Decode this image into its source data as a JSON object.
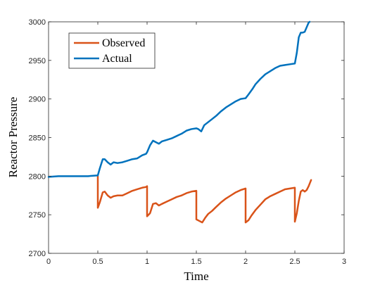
{
  "chart_data": {
    "type": "line",
    "title": "",
    "xlabel": "Time",
    "ylabel": "Reactor Pressure",
    "xlim": [
      0,
      3
    ],
    "ylim": [
      2700,
      3000
    ],
    "xticks": [
      0,
      0.5,
      1,
      1.5,
      2,
      2.5,
      3
    ],
    "xtick_labels": [
      "0",
      "0.5",
      "1",
      "1.5",
      "2",
      "2.5",
      "3"
    ],
    "yticks": [
      2700,
      2750,
      2800,
      2850,
      2900,
      2950,
      3000
    ],
    "ytick_labels": [
      "2700",
      "2750",
      "2800",
      "2850",
      "2900",
      "2950",
      "3000"
    ],
    "grid": false,
    "legend_position": "top-left",
    "series": [
      {
        "name": "Observed",
        "color": "#D95319",
        "points": [
          [
            0.5,
            2800
          ],
          [
            0.5,
            2759
          ],
          [
            0.52,
            2766
          ],
          [
            0.55,
            2779
          ],
          [
            0.57,
            2780
          ],
          [
            0.6,
            2775
          ],
          [
            0.63,
            2772
          ],
          [
            0.66,
            2774
          ],
          [
            0.7,
            2775
          ],
          [
            0.75,
            2775
          ],
          [
            0.8,
            2778
          ],
          [
            0.85,
            2781
          ],
          [
            0.9,
            2783
          ],
          [
            0.95,
            2785
          ],
          [
            0.99,
            2786
          ],
          [
            1.0,
            2787
          ],
          [
            1.0,
            2748
          ],
          [
            1.03,
            2752
          ],
          [
            1.06,
            2764
          ],
          [
            1.09,
            2765
          ],
          [
            1.12,
            2762
          ],
          [
            1.15,
            2764
          ],
          [
            1.2,
            2767
          ],
          [
            1.25,
            2770
          ],
          [
            1.3,
            2773
          ],
          [
            1.35,
            2775
          ],
          [
            1.4,
            2778
          ],
          [
            1.45,
            2780
          ],
          [
            1.5,
            2781
          ],
          [
            1.5,
            2744
          ],
          [
            1.53,
            2742
          ],
          [
            1.56,
            2740
          ],
          [
            1.59,
            2746
          ],
          [
            1.62,
            2751
          ],
          [
            1.66,
            2755
          ],
          [
            1.7,
            2760
          ],
          [
            1.75,
            2766
          ],
          [
            1.8,
            2771
          ],
          [
            1.85,
            2775
          ],
          [
            1.9,
            2779
          ],
          [
            1.95,
            2782
          ],
          [
            2.0,
            2784
          ],
          [
            2.0,
            2740
          ],
          [
            2.03,
            2743
          ],
          [
            2.06,
            2749
          ],
          [
            2.1,
            2756
          ],
          [
            2.15,
            2763
          ],
          [
            2.2,
            2770
          ],
          [
            2.25,
            2774
          ],
          [
            2.3,
            2777
          ],
          [
            2.35,
            2780
          ],
          [
            2.4,
            2783
          ],
          [
            2.45,
            2784
          ],
          [
            2.5,
            2785
          ],
          [
            2.5,
            2741
          ],
          [
            2.52,
            2752
          ],
          [
            2.54,
            2768
          ],
          [
            2.56,
            2780
          ],
          [
            2.58,
            2782
          ],
          [
            2.6,
            2780
          ],
          [
            2.62,
            2782
          ],
          [
            2.64,
            2787
          ],
          [
            2.665,
            2795
          ]
        ]
      },
      {
        "name": "Actual",
        "color": "#0072BD",
        "points": [
          [
            0.0,
            2799
          ],
          [
            0.1,
            2800
          ],
          [
            0.2,
            2800
          ],
          [
            0.3,
            2800
          ],
          [
            0.4,
            2800
          ],
          [
            0.5,
            2801
          ],
          [
            0.52,
            2810
          ],
          [
            0.55,
            2822
          ],
          [
            0.57,
            2822
          ],
          [
            0.6,
            2818
          ],
          [
            0.63,
            2815
          ],
          [
            0.66,
            2818
          ],
          [
            0.7,
            2817
          ],
          [
            0.75,
            2818
          ],
          [
            0.8,
            2820
          ],
          [
            0.85,
            2822
          ],
          [
            0.9,
            2823
          ],
          [
            0.95,
            2827
          ],
          [
            0.99,
            2829
          ],
          [
            1.0,
            2831
          ],
          [
            1.03,
            2840
          ],
          [
            1.06,
            2846
          ],
          [
            1.09,
            2844
          ],
          [
            1.12,
            2842
          ],
          [
            1.15,
            2845
          ],
          [
            1.2,
            2847
          ],
          [
            1.25,
            2849
          ],
          [
            1.3,
            2852
          ],
          [
            1.35,
            2855
          ],
          [
            1.4,
            2859
          ],
          [
            1.45,
            2861
          ],
          [
            1.5,
            2862
          ],
          [
            1.52,
            2861
          ],
          [
            1.55,
            2858
          ],
          [
            1.58,
            2866
          ],
          [
            1.62,
            2870
          ],
          [
            1.66,
            2874
          ],
          [
            1.7,
            2878
          ],
          [
            1.75,
            2884
          ],
          [
            1.8,
            2889
          ],
          [
            1.85,
            2893
          ],
          [
            1.9,
            2897
          ],
          [
            1.95,
            2900
          ],
          [
            2.0,
            2901
          ],
          [
            2.03,
            2906
          ],
          [
            2.07,
            2913
          ],
          [
            2.1,
            2919
          ],
          [
            2.15,
            2926
          ],
          [
            2.2,
            2932
          ],
          [
            2.25,
            2936
          ],
          [
            2.3,
            2940
          ],
          [
            2.35,
            2943
          ],
          [
            2.4,
            2944
          ],
          [
            2.45,
            2945
          ],
          [
            2.5,
            2946
          ],
          [
            2.52,
            2960
          ],
          [
            2.54,
            2980
          ],
          [
            2.56,
            2986
          ],
          [
            2.58,
            2986
          ],
          [
            2.6,
            2987
          ],
          [
            2.62,
            2993
          ],
          [
            2.64,
            2999
          ],
          [
            2.65,
            3000
          ]
        ]
      }
    ]
  }
}
